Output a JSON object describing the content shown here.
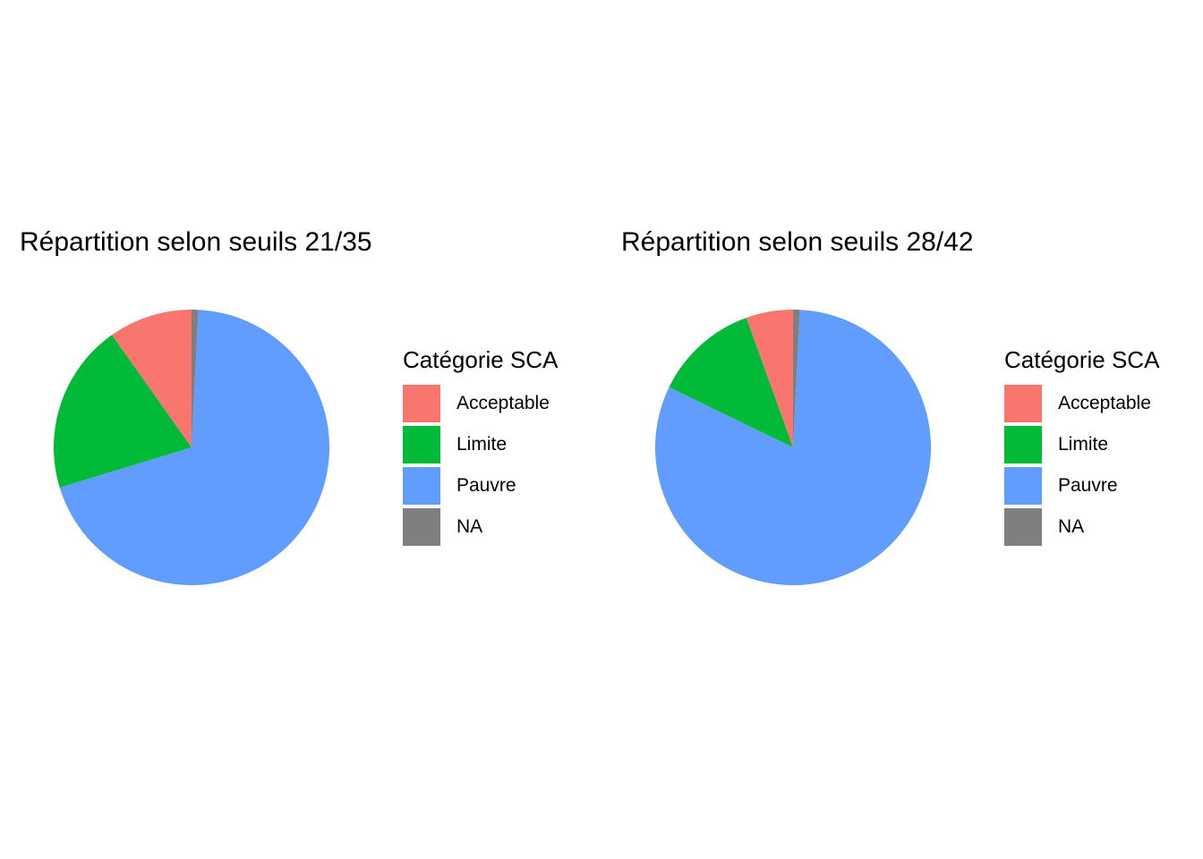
{
  "colors": {
    "Acceptable": "#F8766D",
    "Limite": "#00BA38",
    "Pauvre": "#619CFF",
    "NA": "#7F7F7F"
  },
  "chart_data": [
    {
      "type": "pie",
      "title": "Répartition selon seuils 21/35",
      "legend_title": "Catégorie SCA",
      "legend_position": "right",
      "categories": [
        "Acceptable",
        "Limite",
        "Pauvre",
        "NA"
      ],
      "values": [
        9.8,
        19.9,
        69.5,
        0.8
      ]
    },
    {
      "type": "pie",
      "title": "Répartition selon seuils 28/42",
      "legend_title": "Catégorie SCA",
      "legend_position": "right",
      "categories": [
        "Acceptable",
        "Limite",
        "Pauvre",
        "NA"
      ],
      "values": [
        5.5,
        12.3,
        81.4,
        0.8
      ]
    }
  ]
}
